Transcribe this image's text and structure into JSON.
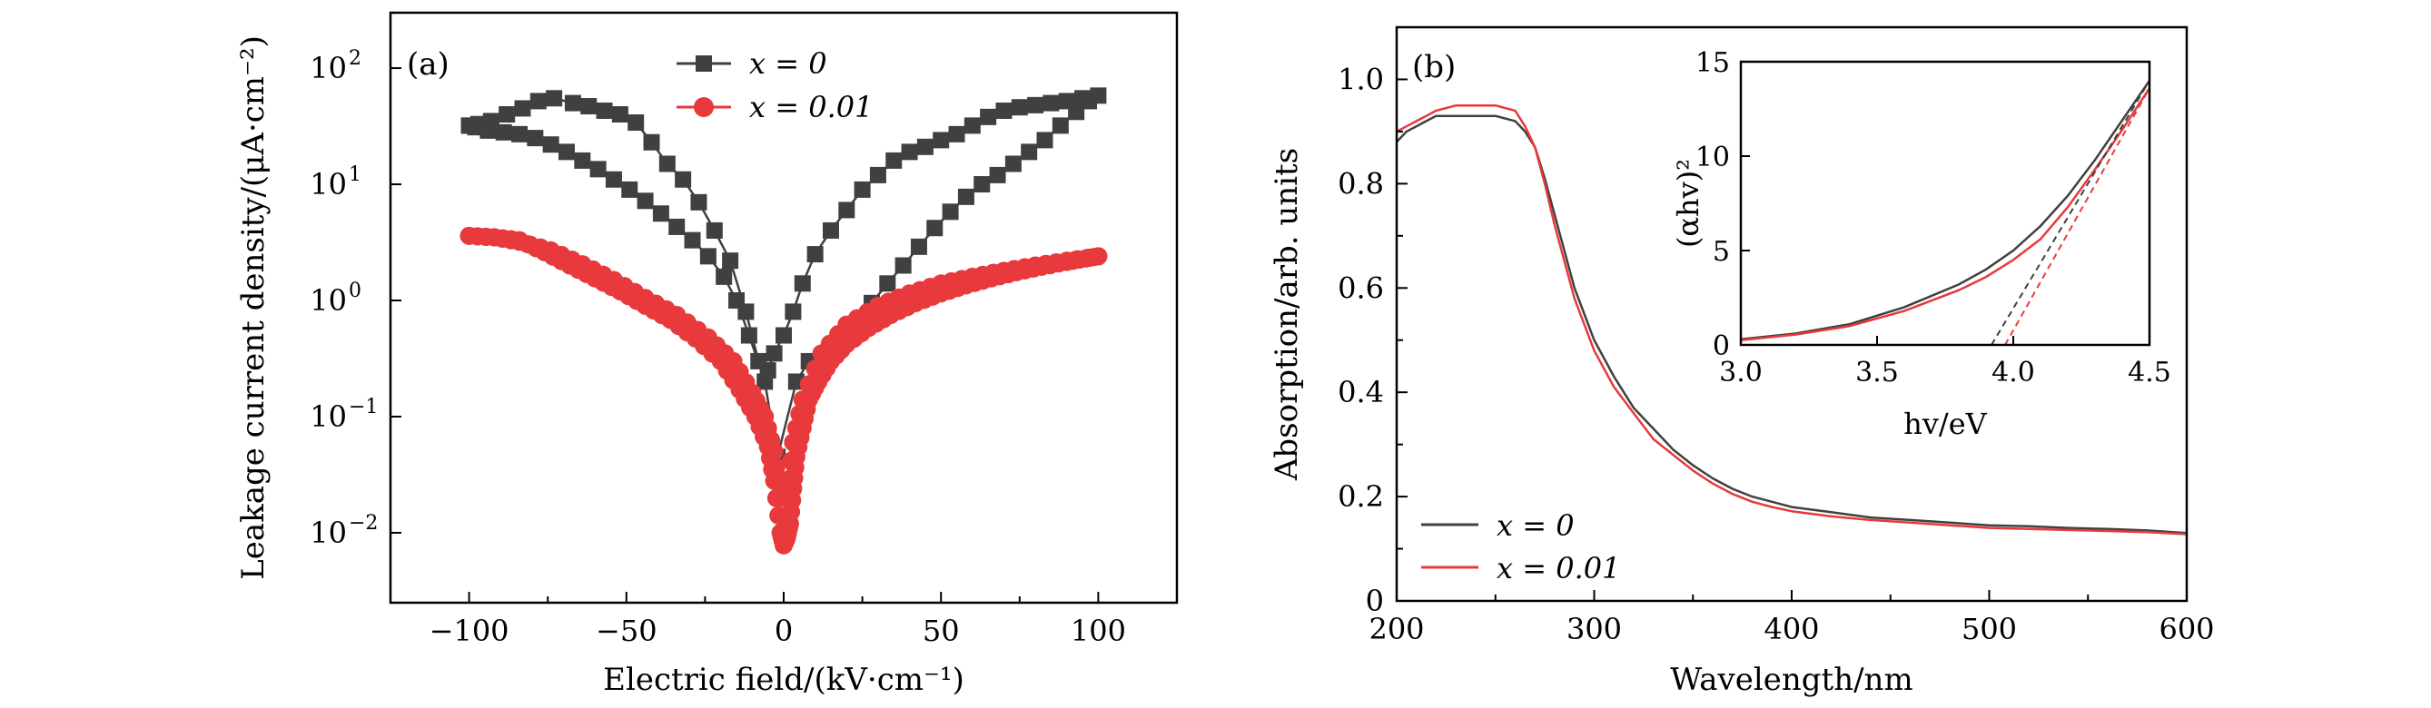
{
  "colors": {
    "x0": "#404040",
    "x001": "#e8393d",
    "axis": "#000000"
  },
  "chart_data": [
    {
      "panel": "(a)",
      "type": "line",
      "yscale": "log",
      "xlabel": "Electric field/(kV·cm⁻¹)",
      "ylabel": "Leakage current density/(μA·cm⁻²)",
      "xlim": [
        -125,
        125
      ],
      "ylim": [
        0.0025,
        300
      ],
      "xticks": [
        -100,
        -50,
        0,
        50,
        100
      ],
      "xtick_labels": [
        "−100",
        "−50",
        "0",
        "50",
        "100"
      ],
      "yticks": [
        0.01,
        0.1,
        1,
        10,
        100
      ],
      "ytick_labels": [
        "10",
        "10",
        "10",
        "10",
        "10"
      ],
      "ytick_exponents": [
        "−2",
        "−1",
        "0",
        "1",
        "2"
      ],
      "legend": {
        "position": "top-center",
        "entries": [
          "x = 0",
          "x = 0.01"
        ]
      },
      "series": [
        {
          "name": "x = 0",
          "marker": "square",
          "x": [
            -100,
            -97,
            -93,
            -88,
            -83,
            -78,
            -73,
            -67,
            -62,
            -57,
            -52,
            -47,
            -42,
            -37,
            -32,
            -27,
            -22,
            -17,
            -12,
            -8,
            -5,
            -3,
            0,
            3,
            6,
            10,
            15,
            20,
            25,
            30,
            35,
            40,
            45,
            50,
            55,
            60,
            65,
            70,
            75,
            80,
            85,
            90,
            95,
            100,
            97,
            93,
            88,
            83,
            78,
            73,
            68,
            63,
            58,
            53,
            48,
            43,
            38,
            33,
            28,
            23,
            18,
            13,
            8,
            4,
            -2,
            -6,
            -11,
            -15,
            -19,
            -24,
            -29,
            -34,
            -39,
            -44,
            -49,
            -54,
            -59,
            -64,
            -69,
            -74,
            -79,
            -84,
            -89,
            -94,
            -98,
            -100
          ],
          "y": [
            32,
            33,
            35,
            40,
            45,
            52,
            55,
            50,
            47,
            43,
            40,
            34,
            23,
            15,
            11,
            7,
            4,
            2.2,
            0.8,
            0.3,
            0.25,
            0.35,
            0.5,
            0.8,
            1.4,
            2.5,
            4,
            6,
            9,
            12,
            16,
            19,
            21,
            24,
            27,
            32,
            38,
            43,
            46,
            48,
            50,
            52,
            55,
            58,
            52,
            42,
            32,
            24,
            19,
            15,
            12,
            10,
            7.8,
            5.8,
            4.2,
            2.9,
            2.0,
            1.4,
            0.95,
            0.62,
            0.42,
            0.3,
            0.3,
            0.2,
            0.045,
            0.2,
            0.5,
            1.0,
            1.6,
            2.4,
            3.3,
            4.3,
            5.6,
            7.2,
            9,
            11,
            13.5,
            16,
            19,
            22,
            25,
            27,
            28,
            29,
            31,
            32
          ]
        },
        {
          "name": "x = 0.01",
          "marker": "circle",
          "x": [
            -100,
            -92,
            -84,
            -76,
            -68,
            -60,
            -52,
            -44,
            -36,
            -28,
            -20,
            -14,
            -9,
            -5,
            -3,
            -1,
            0,
            1,
            2,
            3,
            4,
            6,
            8,
            11,
            15,
            20,
            27,
            34,
            42,
            50,
            58,
            66,
            74,
            82,
            90,
            96,
            100
          ],
          "y": [
            3.6,
            3.5,
            3.3,
            2.6,
            2.0,
            1.55,
            1.2,
            0.9,
            0.68,
            0.47,
            0.3,
            0.17,
            0.1,
            0.055,
            0.028,
            0.01,
            0.0078,
            0.009,
            0.012,
            0.024,
            0.045,
            0.08,
            0.14,
            0.2,
            0.3,
            0.42,
            0.58,
            0.75,
            0.95,
            1.15,
            1.35,
            1.55,
            1.75,
            1.95,
            2.15,
            2.3,
            2.4
          ]
        },
        {
          "name": "x = 0.01 (return sweep)",
          "marker": "circle",
          "x": [
            100,
            90,
            80,
            70,
            60,
            50,
            40,
            30,
            20,
            12,
            6,
            3,
            1,
            -1,
            -3,
            -6,
            -10,
            -16,
            -24,
            -34,
            -44,
            -54,
            -64,
            -74,
            -84,
            -92,
            -100
          ],
          "y": [
            2.4,
            2.2,
            2.0,
            1.8,
            1.6,
            1.4,
            1.15,
            0.9,
            0.62,
            0.35,
            0.14,
            0.06,
            0.02,
            0.02,
            0.05,
            0.1,
            0.16,
            0.3,
            0.48,
            0.75,
            1.05,
            1.5,
            2.05,
            2.7,
            3.2,
            3.5,
            3.6
          ]
        }
      ]
    },
    {
      "panel": "(b)",
      "type": "line",
      "xlabel": "Wavelength/nm",
      "ylabel": "Absorption/arb. units",
      "xlim": [
        200,
        600
      ],
      "ylim": [
        0,
        1.1
      ],
      "xticks": [
        200,
        300,
        400,
        500,
        600
      ],
      "xtick_labels": [
        "200",
        "300",
        "400",
        "500",
        "600"
      ],
      "yticks": [
        0,
        0.2,
        0.4,
        0.6,
        0.8,
        1.0
      ],
      "ytick_labels": [
        "0",
        "0.2",
        "0.4",
        "0.6",
        "0.8",
        "1.0"
      ],
      "legend": {
        "position": "bottom-left",
        "entries": [
          "x = 0",
          "x = 0.01"
        ]
      },
      "series": [
        {
          "name": "x = 0",
          "x": [
            200,
            205,
            210,
            215,
            220,
            230,
            240,
            250,
            260,
            265,
            270,
            275,
            280,
            285,
            290,
            300,
            310,
            320,
            330,
            340,
            350,
            360,
            370,
            380,
            390,
            400,
            420,
            440,
            460,
            480,
            500,
            520,
            540,
            560,
            580,
            600
          ],
          "y": [
            0.88,
            0.9,
            0.91,
            0.92,
            0.93,
            0.93,
            0.93,
            0.93,
            0.92,
            0.9,
            0.87,
            0.81,
            0.74,
            0.67,
            0.6,
            0.5,
            0.43,
            0.37,
            0.33,
            0.29,
            0.26,
            0.235,
            0.215,
            0.2,
            0.19,
            0.18,
            0.17,
            0.16,
            0.155,
            0.15,
            0.145,
            0.143,
            0.14,
            0.138,
            0.135,
            0.13
          ]
        },
        {
          "name": "x = 0.01",
          "x": [
            200,
            205,
            210,
            215,
            220,
            230,
            240,
            250,
            260,
            265,
            270,
            275,
            280,
            285,
            290,
            300,
            310,
            320,
            330,
            340,
            350,
            360,
            370,
            380,
            390,
            400,
            420,
            440,
            460,
            480,
            500,
            520,
            540,
            560,
            580,
            600
          ],
          "y": [
            0.9,
            0.91,
            0.92,
            0.93,
            0.94,
            0.95,
            0.95,
            0.95,
            0.94,
            0.91,
            0.87,
            0.8,
            0.72,
            0.65,
            0.58,
            0.48,
            0.41,
            0.36,
            0.31,
            0.28,
            0.25,
            0.225,
            0.205,
            0.19,
            0.18,
            0.172,
            0.162,
            0.155,
            0.15,
            0.145,
            0.14,
            0.138,
            0.136,
            0.134,
            0.132,
            0.128
          ]
        }
      ]
    },
    {
      "panel": "(b) inset",
      "type": "line",
      "xlabel": "hv/eV",
      "ylabel": "(αhv)²",
      "xlim": [
        3.0,
        4.5
      ],
      "ylim": [
        0,
        15
      ],
      "xticks": [
        3.0,
        3.5,
        4.0,
        4.5
      ],
      "xtick_labels": [
        "3.0",
        "3.5",
        "4.0",
        "4.5"
      ],
      "yticks": [
        0,
        5,
        10,
        15
      ],
      "ytick_labels": [
        "0",
        "5",
        "10",
        "15"
      ],
      "series": [
        {
          "name": "x = 0",
          "x": [
            3.0,
            3.2,
            3.4,
            3.6,
            3.8,
            3.9,
            4.0,
            4.1,
            4.2,
            4.3,
            4.4,
            4.5
          ],
          "y": [
            0.3,
            0.6,
            1.1,
            2.0,
            3.2,
            4.0,
            5.0,
            6.3,
            7.9,
            9.8,
            11.9,
            14.0
          ]
        },
        {
          "name": "x = 0.01",
          "x": [
            3.0,
            3.2,
            3.4,
            3.6,
            3.8,
            3.9,
            4.0,
            4.1,
            4.2,
            4.3,
            4.4,
            4.5
          ],
          "y": [
            0.25,
            0.55,
            1.0,
            1.8,
            2.9,
            3.6,
            4.5,
            5.6,
            7.3,
            9.3,
            11.4,
            13.6
          ]
        },
        {
          "name": "x = 0 tangent (dashed)",
          "x": [
            3.92,
            4.5
          ],
          "y": [
            0,
            14.0
          ]
        },
        {
          "name": "x = 0.01 tangent (dashed)",
          "x": [
            3.97,
            4.5
          ],
          "y": [
            0,
            13.6
          ]
        }
      ]
    }
  ]
}
